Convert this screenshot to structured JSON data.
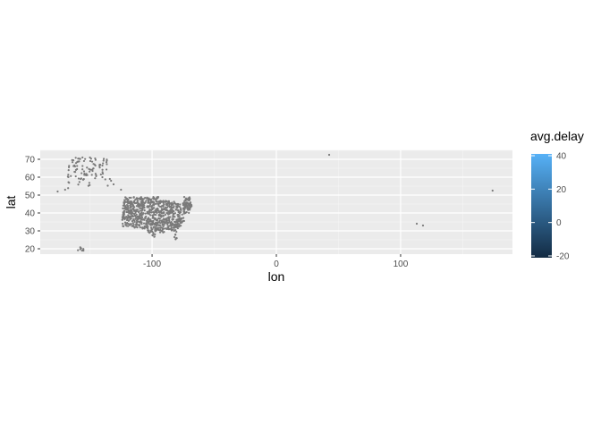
{
  "chart_data": {
    "type": "scatter",
    "title": "",
    "xlabel": "lon",
    "ylabel": "lat",
    "xlim": [
      -190,
      190
    ],
    "ylim": [
      17,
      75
    ],
    "x_ticks": [
      -100,
      0,
      100
    ],
    "y_ticks": [
      20,
      30,
      40,
      50,
      60,
      70
    ],
    "grid": true,
    "legend": {
      "title": "avg.delay",
      "placement": "right",
      "type": "colorbar",
      "range": [
        -20,
        40
      ],
      "ticks": [
        40,
        20,
        0,
        -20
      ],
      "low_color": "#132B43",
      "high_color": "#56B1F7"
    },
    "point_color": "#7a7a7a",
    "panel_background": "#ebebeb",
    "clusters": [
      {
        "region": "contiguous-us",
        "lon_range": [
          -124,
          -68
        ],
        "lat_range": [
          25,
          49
        ],
        "count": 900
      },
      {
        "region": "alaska",
        "lon_range": [
          -168,
          -135
        ],
        "lat_range": [
          52,
          71
        ],
        "count": 90
      },
      {
        "region": "hawaii",
        "lon_range": [
          -160,
          -155
        ],
        "lat_range": [
          19,
          22
        ],
        "count": 8
      }
    ],
    "points": [
      {
        "x": 42.5,
        "y": 72.5
      },
      {
        "x": 113,
        "y": 34
      },
      {
        "x": 118,
        "y": 33
      },
      {
        "x": 174,
        "y": 52.5
      },
      {
        "x": -176,
        "y": 52
      },
      {
        "x": -170,
        "y": 53
      },
      {
        "x": -133,
        "y": 58
      },
      {
        "x": -131,
        "y": 56
      },
      {
        "x": -134,
        "y": 59
      },
      {
        "x": -140,
        "y": 60
      },
      {
        "x": -145,
        "y": 61
      },
      {
        "x": -150,
        "y": 71
      },
      {
        "x": -156,
        "y": 71
      },
      {
        "x": -162,
        "y": 66
      },
      {
        "x": -125,
        "y": 53
      }
    ]
  }
}
